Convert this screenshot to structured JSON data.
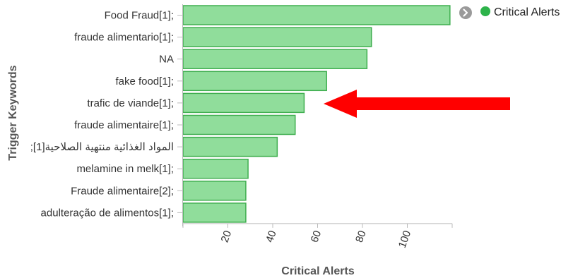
{
  "chart_data": {
    "type": "bar",
    "orientation": "horizontal",
    "categories": [
      "Food Fraud[1];",
      "fraude alimentario[1];",
      "NA",
      "fake food[1];",
      "trafic de viande[1];",
      "fraude alimentaire[1];",
      "المواد الغذائية منتهية الصلاحية[1];",
      "melamine in melk[1];",
      "Fraude alimentaire[2];",
      "adulteração de alimentos[1];"
    ],
    "series": [
      {
        "name": "Critical Alerts",
        "values": [
          119,
          84,
          82,
          64,
          54,
          50,
          42,
          29,
          28,
          28
        ]
      }
    ],
    "xlabel": "Critical Alerts",
    "ylabel": "Trigger Keywords",
    "xticks": [
      20,
      40,
      60,
      80,
      100
    ],
    "xlim": [
      0,
      120
    ],
    "grid": false,
    "legend": "top-right",
    "highlighted_category": "trafic de viande[1];",
    "colors": {
      "bar_fill": "#90dd9b",
      "bar_stroke": "#3fae4f",
      "legend_dot": "#2db34a",
      "arrow": "#ff0000",
      "axis": "#bbbbbb"
    }
  },
  "legend": {
    "label": "Critical Alerts",
    "toggle_icon": "chevron-right-circle-icon"
  }
}
